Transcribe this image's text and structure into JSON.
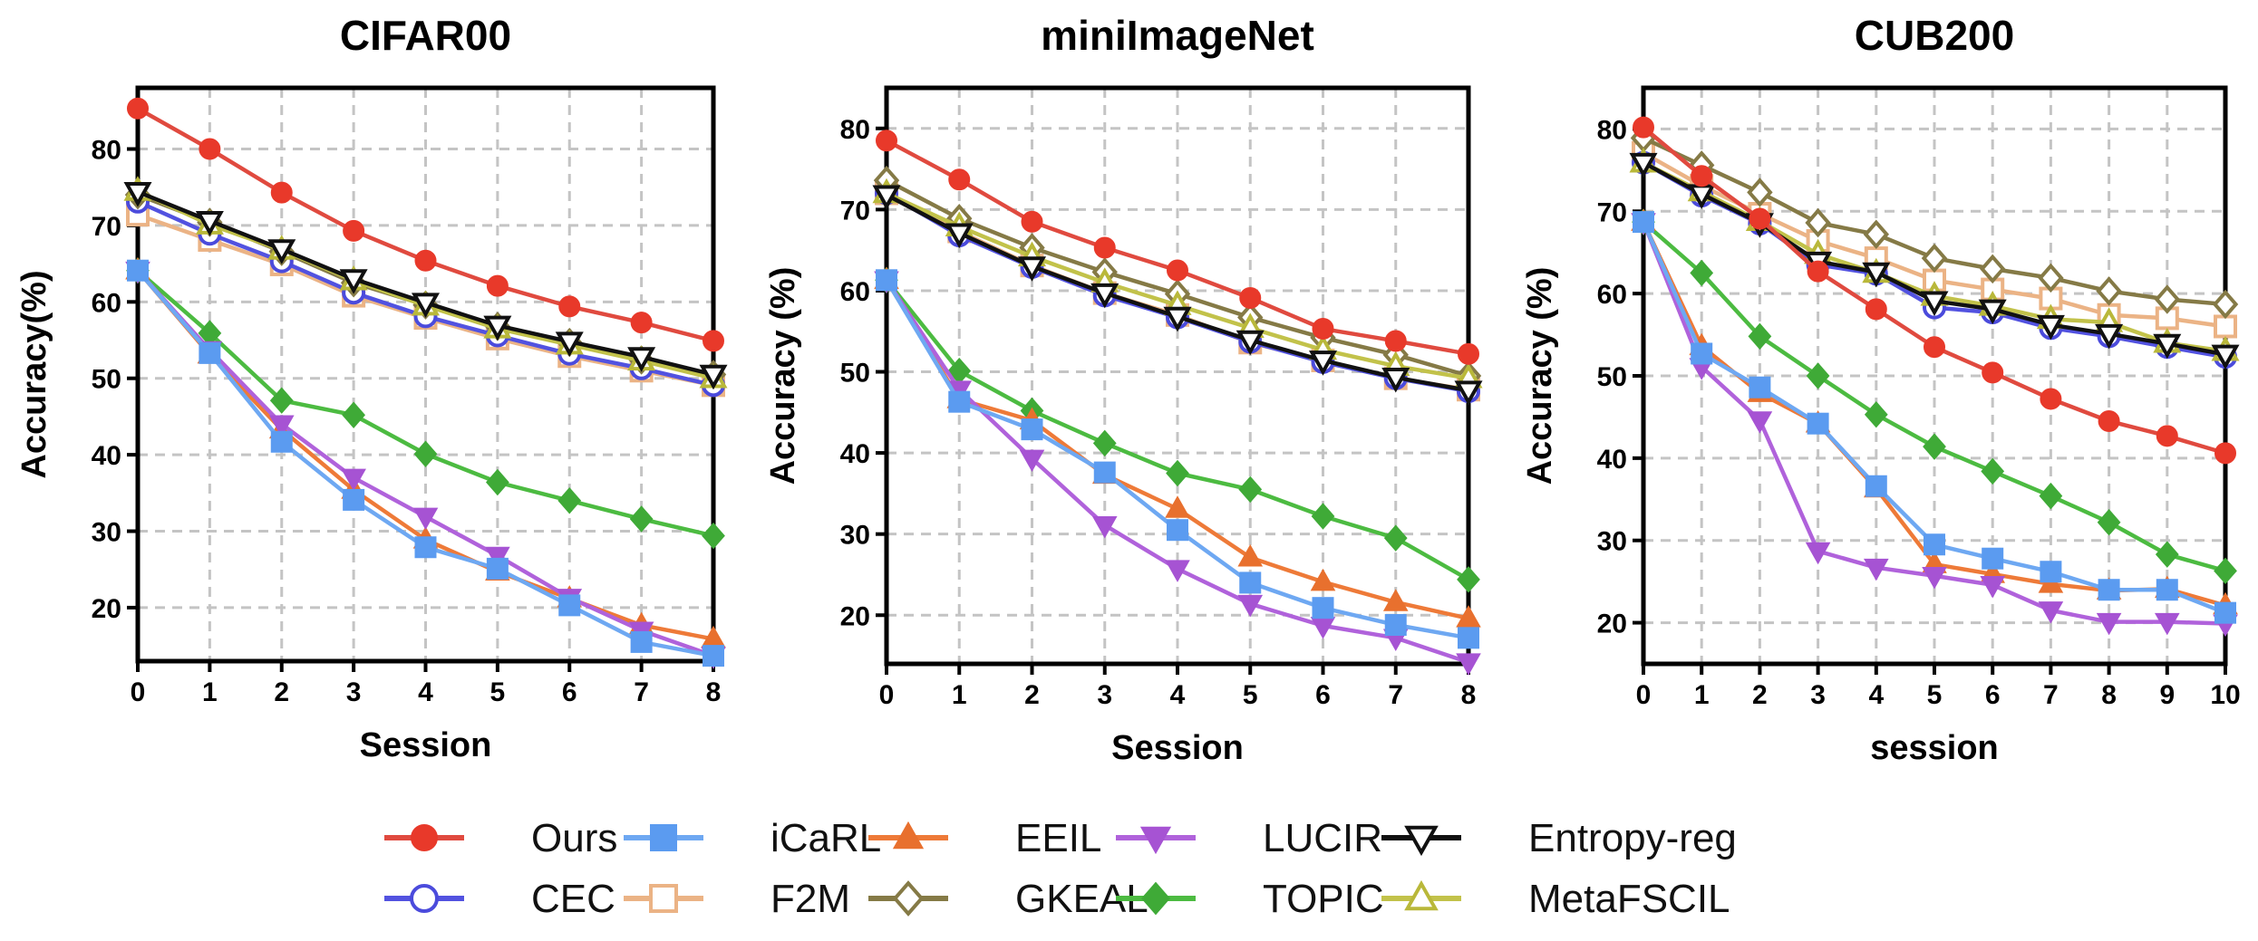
{
  "chart_data": [
    {
      "type": "line",
      "title": "CIFAR00",
      "xlabel": "Session",
      "ylabel": "Accuracy(%)",
      "xlim": [
        0,
        8
      ],
      "ylim": [
        13,
        88
      ],
      "x": [
        0,
        1,
        2,
        3,
        4,
        5,
        6,
        7,
        8
      ],
      "xticks": [
        0,
        1,
        2,
        3,
        4,
        5,
        6,
        7,
        8
      ],
      "yticks": [
        20,
        30,
        40,
        50,
        60,
        70,
        80
      ],
      "grid": true,
      "series": [
        {
          "name": "TOPIC",
          "values": [
            64.1,
            55.9,
            47.1,
            45.2,
            40.1,
            36.4,
            34.0,
            31.6,
            29.4
          ]
        },
        {
          "name": "EEIL",
          "values": [
            64.1,
            53.1,
            43.3,
            35.4,
            28.9,
            24.7,
            21.2,
            17.7,
            15.9
          ]
        },
        {
          "name": "LUCIR",
          "values": [
            64.1,
            53.7,
            44.0,
            37.0,
            31.9,
            26.8,
            21.3,
            17.0,
            13.7
          ]
        },
        {
          "name": "iCaRL",
          "values": [
            64.1,
            53.3,
            41.7,
            34.1,
            27.9,
            25.1,
            20.3,
            15.5,
            13.7
          ]
        },
        {
          "name": "F2M",
          "values": [
            71.4,
            68.1,
            64.9,
            60.8,
            57.9,
            55.2,
            52.9,
            51.0,
            49.1
          ]
        },
        {
          "name": "CEC",
          "values": [
            73.1,
            68.9,
            65.3,
            61.2,
            58.1,
            55.6,
            53.2,
            51.3,
            49.1
          ]
        },
        {
          "name": "GKEAL",
          "values": [
            74.0,
            70.4,
            66.6,
            62.5,
            59.6,
            56.8,
            54.7,
            52.4,
            50.5
          ]
        },
        {
          "name": "MetaFSCIL",
          "values": [
            74.5,
            70.1,
            66.8,
            62.8,
            59.5,
            56.5,
            54.4,
            52.3,
            50.0
          ]
        },
        {
          "name": "Entropy-reg",
          "values": [
            74.4,
            70.6,
            66.9,
            63.0,
            59.9,
            56.9,
            54.8,
            52.8,
            50.5
          ]
        },
        {
          "name": "Ours",
          "values": [
            85.3,
            80.0,
            74.3,
            69.3,
            65.4,
            62.1,
            59.4,
            57.3,
            54.9
          ]
        }
      ]
    },
    {
      "type": "line",
      "title": "miniImageNet",
      "xlabel": "Session",
      "ylabel": "Accuracy (%)",
      "xlim": [
        0,
        8
      ],
      "ylim": [
        14,
        85
      ],
      "x": [
        0,
        1,
        2,
        3,
        4,
        5,
        6,
        7,
        8
      ],
      "xticks": [
        0,
        1,
        2,
        3,
        4,
        5,
        6,
        7,
        8
      ],
      "yticks": [
        20,
        30,
        40,
        50,
        60,
        70,
        80
      ],
      "grid": true,
      "series": [
        {
          "name": "TOPIC",
          "values": [
            61.3,
            50.1,
            45.2,
            41.2,
            37.5,
            35.5,
            32.2,
            29.5,
            24.4
          ]
        },
        {
          "name": "EEIL",
          "values": [
            61.3,
            46.6,
            44.0,
            37.3,
            33.1,
            27.1,
            24.1,
            21.6,
            19.6
          ]
        },
        {
          "name": "LUCIR",
          "values": [
            61.3,
            47.8,
            39.3,
            31.1,
            25.7,
            21.4,
            18.7,
            17.2,
            14.2
          ]
        },
        {
          "name": "iCaRL",
          "values": [
            61.3,
            46.3,
            42.9,
            37.6,
            30.5,
            24.0,
            20.9,
            18.8,
            17.2
          ]
        },
        {
          "name": "F2M",
          "values": [
            72.0,
            67.3,
            63.1,
            59.7,
            57.0,
            53.6,
            51.4,
            49.2,
            47.8
          ]
        },
        {
          "name": "CEC",
          "values": [
            72.0,
            66.8,
            62.9,
            59.4,
            56.7,
            53.7,
            51.2,
            49.2,
            47.6
          ]
        },
        {
          "name": "GKEAL",
          "values": [
            73.6,
            68.9,
            65.3,
            62.3,
            59.6,
            56.7,
            54.2,
            52.1,
            49.5
          ]
        },
        {
          "name": "MetaFSCIL",
          "values": [
            72.0,
            67.9,
            64.2,
            61.0,
            58.2,
            55.4,
            52.7,
            50.7,
            49.2
          ]
        },
        {
          "name": "Entropy-reg",
          "values": [
            71.8,
            67.1,
            63.0,
            59.7,
            56.8,
            53.9,
            51.4,
            49.3,
            47.7
          ]
        },
        {
          "name": "Ours",
          "values": [
            78.5,
            73.7,
            68.5,
            65.3,
            62.5,
            59.1,
            55.3,
            53.8,
            52.2
          ]
        }
      ]
    },
    {
      "type": "line",
      "title": "CUB200",
      "xlabel": "session",
      "ylabel": "Accuracy (%)",
      "xlim": [
        0,
        10
      ],
      "ylim": [
        15,
        85
      ],
      "x": [
        0,
        1,
        2,
        3,
        4,
        5,
        6,
        7,
        8,
        9,
        10
      ],
      "xticks": [
        0,
        1,
        2,
        3,
        4,
        5,
        6,
        7,
        8,
        9,
        10
      ],
      "yticks": [
        20,
        30,
        40,
        50,
        60,
        70,
        80
      ],
      "grid": true,
      "series": [
        {
          "name": "TOPIC",
          "values": [
            68.7,
            62.5,
            54.8,
            50.0,
            45.3,
            41.4,
            38.4,
            35.4,
            32.2,
            28.3,
            26.3
          ]
        },
        {
          "name": "EEIL",
          "values": [
            68.7,
            53.6,
            47.9,
            44.2,
            36.3,
            27.1,
            25.9,
            24.7,
            23.9,
            24.1,
            22.1
          ]
        },
        {
          "name": "LUCIR",
          "values": [
            68.7,
            51.1,
            44.6,
            28.7,
            26.7,
            25.7,
            24.6,
            21.5,
            20.1,
            20.1,
            19.9
          ]
        },
        {
          "name": "iCaRL",
          "values": [
            68.7,
            52.7,
            48.6,
            44.2,
            36.6,
            29.5,
            27.8,
            26.2,
            24.0,
            24.0,
            21.2
          ]
        },
        {
          "name": "F2M",
          "values": [
            77.1,
            73.1,
            69.7,
            66.4,
            64.3,
            61.6,
            60.5,
            59.4,
            57.4,
            57.0,
            56.0
          ]
        },
        {
          "name": "CEC",
          "values": [
            75.9,
            71.9,
            68.5,
            63.5,
            62.4,
            58.3,
            57.7,
            55.8,
            54.8,
            53.5,
            52.3
          ]
        },
        {
          "name": "GKEAL",
          "values": [
            78.9,
            75.6,
            72.3,
            68.6,
            67.2,
            64.3,
            63.0,
            61.9,
            60.3,
            59.3,
            58.7
          ]
        },
        {
          "name": "MetaFSCIL",
          "values": [
            75.9,
            72.4,
            68.8,
            64.8,
            62.5,
            59.7,
            58.5,
            56.9,
            56.5,
            54.0,
            53.0
          ]
        },
        {
          "name": "Entropy-reg",
          "values": [
            75.9,
            72.1,
            68.6,
            63.9,
            62.6,
            59.1,
            58.1,
            56.2,
            55.1,
            53.9,
            52.6
          ]
        },
        {
          "name": "Ours",
          "values": [
            80.2,
            74.3,
            69.1,
            62.7,
            58.1,
            53.5,
            50.4,
            47.2,
            44.5,
            42.7,
            40.6
          ]
        }
      ]
    }
  ],
  "legend": {
    "placement": "bottom",
    "items": [
      {
        "name": "Ours",
        "color": "#e8392a",
        "line": "#e04a3f",
        "marker": "circle-filled"
      },
      {
        "name": "iCaRL",
        "color": "#5b9bf0",
        "line": "#6ea8f2",
        "marker": "square-filled"
      },
      {
        "name": "EEIL",
        "color": "#e8702e",
        "line": "#ee7a38",
        "marker": "triangle-up-filled"
      },
      {
        "name": "LUCIR",
        "color": "#a653d3",
        "line": "#b062db",
        "marker": "triangle-down-filled"
      },
      {
        "name": "Entropy-reg",
        "color": "#111111",
        "line": "#111111",
        "marker": "triangle-down-open"
      },
      {
        "name": "CEC",
        "color": "#4b4bdc",
        "line": "#5252e0",
        "marker": "circle-open"
      },
      {
        "name": "F2M",
        "color": "#ebb385",
        "line": "#ebb385",
        "marker": "square-open"
      },
      {
        "name": "GKEAL",
        "color": "#857a46",
        "line": "#857a46",
        "marker": "diamond-open"
      },
      {
        "name": "TOPIC",
        "color": "#3faa37",
        "line": "#4cbb41",
        "marker": "diamond-filled"
      },
      {
        "name": "MetaFSCIL",
        "color": "#b9b83a",
        "line": "#c2c24a",
        "marker": "triangle-up-open"
      }
    ]
  }
}
